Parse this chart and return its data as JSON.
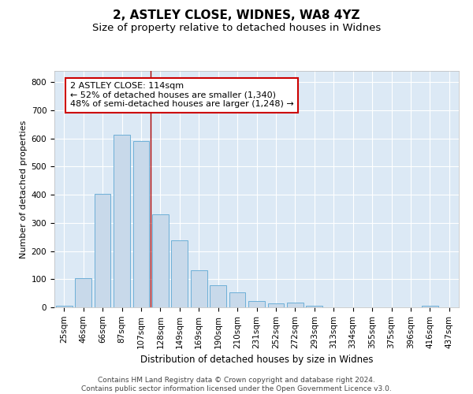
{
  "title1": "2, ASTLEY CLOSE, WIDNES, WA8 4YZ",
  "title2": "Size of property relative to detached houses in Widnes",
  "xlabel": "Distribution of detached houses by size in Widnes",
  "ylabel": "Number of detached properties",
  "categories": [
    "25sqm",
    "46sqm",
    "66sqm",
    "87sqm",
    "107sqm",
    "128sqm",
    "149sqm",
    "169sqm",
    "190sqm",
    "210sqm",
    "231sqm",
    "252sqm",
    "272sqm",
    "293sqm",
    "313sqm",
    "334sqm",
    "355sqm",
    "375sqm",
    "396sqm",
    "416sqm",
    "437sqm"
  ],
  "values": [
    7,
    105,
    403,
    614,
    591,
    330,
    238,
    133,
    78,
    52,
    22,
    14,
    17,
    6,
    1,
    0,
    0,
    0,
    0,
    7,
    0
  ],
  "bar_color": "#c8d9ea",
  "bar_edge_color": "#6dafd7",
  "property_line_x": 4.5,
  "annotation_text": "2 ASTLEY CLOSE: 114sqm\n← 52% of detached houses are smaller (1,340)\n48% of semi-detached houses are larger (1,248) →",
  "annotation_box_color": "#ffffff",
  "annotation_box_edge_color": "#cc0000",
  "vline_color": "#aa0000",
  "ylim": [
    0,
    840
  ],
  "yticks": [
    0,
    100,
    200,
    300,
    400,
    500,
    600,
    700,
    800
  ],
  "background_color": "#dce9f5",
  "footer_text": "Contains HM Land Registry data © Crown copyright and database right 2024.\nContains public sector information licensed under the Open Government Licence v3.0.",
  "title1_fontsize": 11,
  "title2_fontsize": 9.5,
  "xlabel_fontsize": 8.5,
  "ylabel_fontsize": 8,
  "tick_fontsize": 7.5,
  "annotation_fontsize": 8,
  "footer_fontsize": 6.5
}
